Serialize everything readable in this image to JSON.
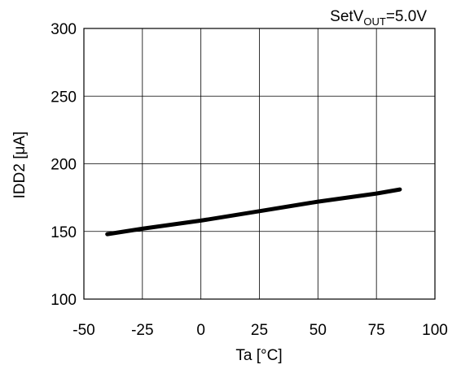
{
  "chart_data": {
    "type": "line",
    "title": "",
    "annotation": {
      "prefix": "SetV",
      "subscript": "OUT",
      "suffix": "=5.0V"
    },
    "xlabel": "Ta [°C]",
    "ylabel": "IDD2 [μA]",
    "xlim": [
      -50,
      100
    ],
    "ylim": [
      100,
      300
    ],
    "xticks": [
      -50,
      -25,
      0,
      25,
      50,
      75,
      100
    ],
    "yticks": [
      100,
      150,
      200,
      250,
      300
    ],
    "grid": true,
    "legend": "none",
    "colors": {
      "line": "#000000",
      "grid": "#000000"
    },
    "series": [
      {
        "x": [
          -40,
          -25,
          0,
          25,
          50,
          75,
          85
        ],
        "y": [
          148,
          152,
          158,
          165,
          172,
          178,
          181
        ]
      }
    ]
  }
}
